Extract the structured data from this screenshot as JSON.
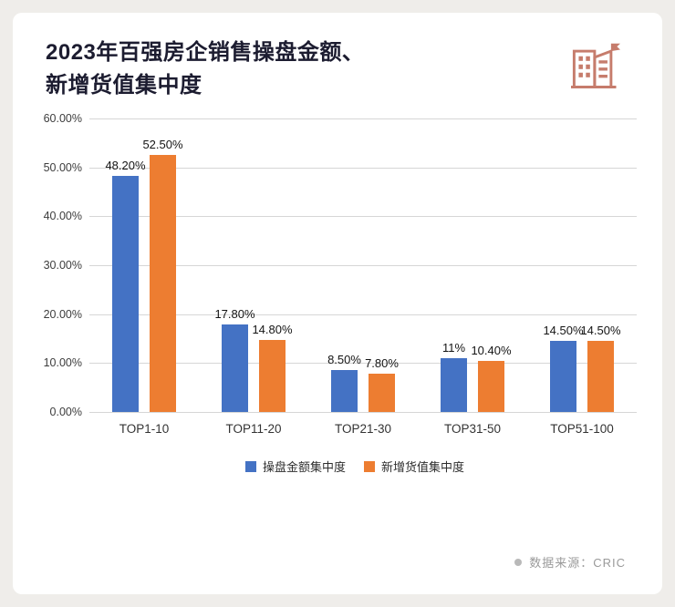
{
  "header": {
    "title_line1": "2023年百强房企销售操盘金额、",
    "title_line2": "新增货值集中度",
    "title_color": "#1c1c30",
    "icon_color": "#c67c6c"
  },
  "chart_data": {
    "type": "bar",
    "title": "2023年百强房企销售操盘金额、新增货值集中度",
    "categories": [
      "TOP1-10",
      "TOP11-20",
      "TOP21-30",
      "TOP31-50",
      "TOP51-100"
    ],
    "series": [
      {
        "name": "操盘金额集中度",
        "color": "#4472c4",
        "values": [
          48.2,
          17.8,
          8.5,
          11,
          14.5
        ],
        "labels": [
          "48.20%",
          "17.80%",
          "8.50%",
          "11%",
          "14.50%"
        ]
      },
      {
        "name": "新增货值集中度",
        "color": "#ed7d31",
        "values": [
          52.5,
          14.8,
          7.8,
          10.4,
          14.5
        ],
        "labels": [
          "52.50%",
          "14.80%",
          "7.80%",
          "10.40%",
          "14.50%"
        ]
      }
    ],
    "y_ticks": [
      {
        "value": 60,
        "label": "60.00%"
      },
      {
        "value": 50,
        "label": "50.00%"
      },
      {
        "value": 40,
        "label": "40.00%"
      },
      {
        "value": 30,
        "label": "30.00%"
      },
      {
        "value": 20,
        "label": "20.00%"
      },
      {
        "value": 10,
        "label": "10.00%"
      },
      {
        "value": 0,
        "label": "0.00%"
      }
    ],
    "ylim": [
      0,
      60
    ],
    "grid": true,
    "legend_position": "bottom"
  },
  "footer": {
    "source_label": "数据来源：CRIC"
  }
}
